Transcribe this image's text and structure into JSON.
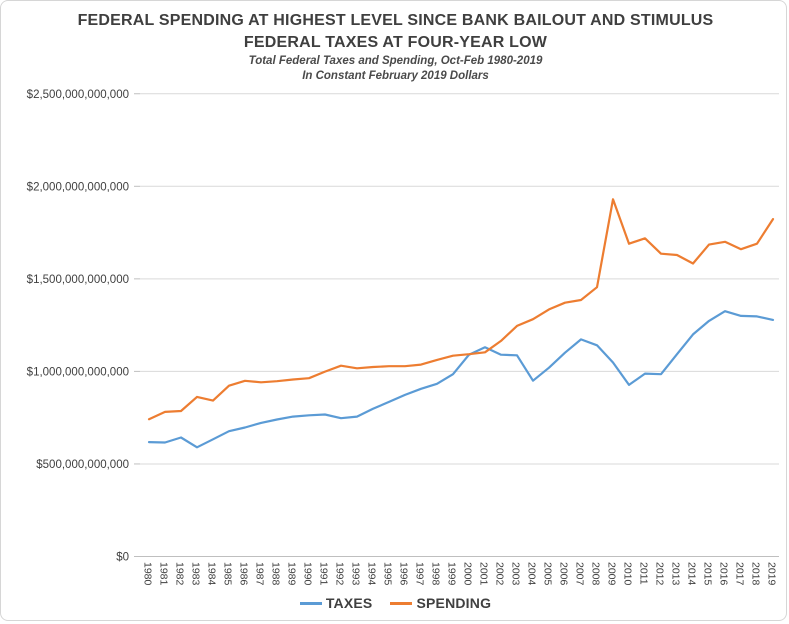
{
  "header": {
    "title_line1": "FEDERAL SPENDING AT HIGHEST LEVEL SINCE BANK BAILOUT AND STIMULUS",
    "title_line2": "FEDERAL TAXES AT FOUR-YEAR LOW",
    "subtitle_line1": "Total Federal Taxes and Spending, Oct-Feb 1980-2019",
    "subtitle_line2": "In Constant February 2019 Dollars"
  },
  "chart_data": {
    "type": "line",
    "x": [
      1980,
      1981,
      1982,
      1983,
      1984,
      1985,
      1986,
      1987,
      1988,
      1989,
      1990,
      1991,
      1992,
      1993,
      1994,
      1995,
      1996,
      1997,
      1998,
      1999,
      2000,
      2001,
      2002,
      2003,
      2004,
      2005,
      2006,
      2007,
      2008,
      2009,
      2010,
      2011,
      2012,
      2013,
      2014,
      2015,
      2016,
      2017,
      2018,
      2019
    ],
    "series": [
      {
        "name": "TAXES",
        "color": "#5B9BD5",
        "values_billions_usd": [
          618,
          616,
          643,
          590,
          633,
          677,
          697,
          722,
          740,
          756,
          763,
          767,
          747,
          756,
          798,
          835,
          873,
          906,
          933,
          985,
          1090,
          1130,
          1090,
          1087,
          950,
          1020,
          1101,
          1173,
          1141,
          1048,
          927,
          988,
          985,
          1093,
          1200,
          1273,
          1325,
          1300,
          1297,
          1278
        ]
      },
      {
        "name": "SPENDING",
        "color": "#ED7D31",
        "values_billions_usd": [
          742,
          781,
          786,
          862,
          842,
          923,
          949,
          941,
          947,
          956,
          963,
          999,
          1031,
          1017,
          1024,
          1028,
          1028,
          1037,
          1062,
          1085,
          1093,
          1103,
          1165,
          1246,
          1282,
          1335,
          1371,
          1386,
          1455,
          1930,
          1690,
          1719,
          1636,
          1629,
          1583,
          1685,
          1700,
          1660,
          1690,
          1823
        ]
      }
    ],
    "unit": "billions of US dollars",
    "xlabel": "",
    "ylabel": "",
    "ylim_billions": [
      0,
      2500
    ],
    "ytick_step_billions": 500,
    "ytick_labels": [
      "$0",
      "$500,000,000,000",
      "$1,000,000,000,000",
      "$1,500,000,000,000",
      "$2,000,000,000,000",
      "$2,500,000,000,000"
    ],
    "grid": true,
    "legend_position": "bottom"
  },
  "legend": {
    "items": [
      {
        "label": "TAXES",
        "color": "#5B9BD5"
      },
      {
        "label": "SPENDING",
        "color": "#ED7D31"
      }
    ]
  },
  "colors": {
    "taxes_line": "#5B9BD5",
    "spending_line": "#ED7D31",
    "gridline": "#D9D9D9",
    "axis_line": "#BFBFBF",
    "title_text": "#3f3f3f",
    "axis_text": "#404040",
    "frame_border": "#d6d6d6"
  }
}
